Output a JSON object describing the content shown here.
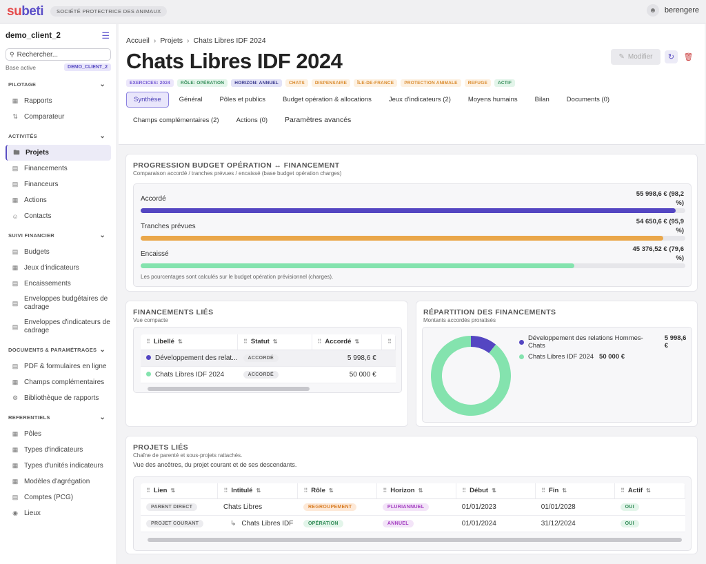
{
  "topbar": {
    "logo_prefix": "su",
    "logo_suffix": "beti",
    "org": "SOCIÉTÉ PROTECTRICE DES ANIMAUX",
    "user": "berengere"
  },
  "sidebar": {
    "client": "demo_client_2",
    "search_placeholder": "Rechercher...",
    "base_label": "Base active",
    "base_value": "DEMO_CLIENT_2",
    "sections": [
      {
        "label": "PILOTAGE",
        "items": [
          "Rapports",
          "Comparateur"
        ]
      },
      {
        "label": "ACTIVITÉS",
        "items": [
          "Projets",
          "Financements",
          "Financeurs",
          "Actions",
          "Contacts"
        ]
      },
      {
        "label": "SUIVI FINANCIER",
        "items": [
          "Budgets",
          "Jeux d'indicateurs",
          "Encaissements",
          "Enveloppes budgétaires de cadrage",
          "Enveloppes d'indicateurs de cadrage"
        ]
      },
      {
        "label": "DOCUMENTS & PARAMÉTRAGES",
        "items": [
          "PDF & formulaires en ligne",
          "Champs complémentaires",
          "Bibliothèque de rapports"
        ]
      },
      {
        "label": "REFERENTIELS",
        "items": [
          "Pôles",
          "Types d'indicateurs",
          "Types d'unités indicateurs",
          "Modèles d'agrégation",
          "Comptes (PCG)",
          "Lieux"
        ]
      }
    ]
  },
  "header": {
    "breadcrumb": [
      "Accueil",
      "Projets",
      "Chats Libres IDF 2024"
    ],
    "title": "Chats Libres IDF 2024",
    "modify": "Modifier",
    "tags": [
      {
        "label": "EXERCICES: 2024",
        "bg": "#ece7fb",
        "fg": "#6b4fd0"
      },
      {
        "label": "RÔLE: OPÉRATION",
        "bg": "#e3f5ea",
        "fg": "#2f8a55"
      },
      {
        "label": "HORIZON: ANNUEL",
        "bg": "#e2e2f7",
        "fg": "#33338a"
      },
      {
        "label": "CHATS",
        "bg": "#fdf1e2",
        "fg": "#d9892a"
      },
      {
        "label": "DISPENSAIRE",
        "bg": "#fdf1e2",
        "fg": "#d9892a"
      },
      {
        "label": "ÎLE-DE-FRANCE",
        "bg": "#fdf1e2",
        "fg": "#d9892a"
      },
      {
        "label": "PROTECTION ANIMALE",
        "bg": "#fdf1e2",
        "fg": "#d9892a"
      },
      {
        "label": "REFUGE",
        "bg": "#fdf1e2",
        "fg": "#d9892a"
      },
      {
        "label": "ACTIF",
        "bg": "#e3f5ea",
        "fg": "#2f8a55"
      }
    ],
    "tabs": [
      "Synthèse",
      "Général",
      "Pôles et publics",
      "Budget opération & allocations",
      "Jeux d'indicateurs (2)",
      "Moyens humains",
      "Bilan",
      "Documents (0)"
    ],
    "tabs2": [
      "Champs complémentaires (2)",
      "Actions (0)",
      "Paramètres avancés"
    ]
  },
  "progress": {
    "title": "PROGRESSION BUDGET OPÉRATION ↔ FINANCEMENT",
    "subtitle": "Comparaison accordé / tranches prévues / encaissé (base budget opération charges)",
    "bars": [
      {
        "label": "Accordé",
        "value": "55 998,6 € (98,2 %)",
        "pct": 98.2,
        "color": "#5446c2"
      },
      {
        "label": "Tranches prévues",
        "value": "54 650,6 € (95,9 %)",
        "pct": 95.9,
        "color": "#eaa74a"
      },
      {
        "label": "Encaissé",
        "value": "45 376,52 € (79,6 %)",
        "pct": 79.6,
        "color": "#84e3ae"
      }
    ],
    "note": "Les pourcentages sont calculés sur le budget opération prévisionnel (charges)."
  },
  "financements": {
    "title": "FINANCEMENTS LIÉS",
    "subtitle": "Vue compacte",
    "columns": [
      "Libellé",
      "Statut",
      "Accordé"
    ],
    "rows": [
      {
        "libelle": "Développement des relat...",
        "statut": "ACCORDÉ",
        "accorde": "5 998,6 €",
        "color": "#5446c2"
      },
      {
        "libelle": "Chats Libres IDF 2024",
        "statut": "ACCORDÉ",
        "accorde": "50 000 €",
        "color": "#84e3ae"
      }
    ]
  },
  "repartition": {
    "title": "RÉPARTITION DES FINANCEMENTS",
    "subtitle": "Montants accordés proratisés",
    "chart_data": {
      "type": "pie",
      "labels": [
        "Développement des relations Hommes-Chats",
        "Chats Libres IDF 2024"
      ],
      "values": [
        5998.6,
        50000
      ],
      "display_values": [
        "5 998,6 €",
        "50 000 €"
      ],
      "colors": [
        "#5446c2",
        "#84e3ae"
      ]
    }
  },
  "projets": {
    "title": "PROJETS LIÉS",
    "subtitle": "Chaîne de parenté et sous-projets rattachés.",
    "description": "Vue des ancêtres, du projet courant et de ses descendants.",
    "columns": [
      "Lien",
      "Intitulé",
      "Rôle",
      "Horizon",
      "Début",
      "Fin",
      "Actif"
    ],
    "rows": [
      {
        "lien": "PARENT DIRECT",
        "intitule": "Chats Libres",
        "role": "REGROUPEMENT",
        "horizon": "PLURIANNUEL",
        "debut": "01/01/2023",
        "fin": "01/01/2028",
        "actif": "OUI",
        "indent": false
      },
      {
        "lien": "PROJET COURANT",
        "intitule": "Chats Libres IDF",
        "role": "OPÉRATION",
        "horizon": "ANNUEL",
        "debut": "01/01/2024",
        "fin": "31/12/2024",
        "actif": "OUI",
        "indent": true
      }
    ]
  }
}
